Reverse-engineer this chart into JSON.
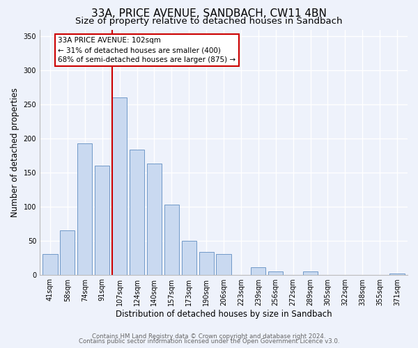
{
  "title": "33A, PRICE AVENUE, SANDBACH, CW11 4BN",
  "subtitle": "Size of property relative to detached houses in Sandbach",
  "xlabel": "Distribution of detached houses by size in Sandbach",
  "ylabel": "Number of detached properties",
  "categories": [
    "41sqm",
    "58sqm",
    "74sqm",
    "91sqm",
    "107sqm",
    "124sqm",
    "140sqm",
    "157sqm",
    "173sqm",
    "190sqm",
    "206sqm",
    "223sqm",
    "239sqm",
    "256sqm",
    "272sqm",
    "289sqm",
    "305sqm",
    "322sqm",
    "338sqm",
    "355sqm",
    "371sqm"
  ],
  "values": [
    30,
    65,
    193,
    160,
    260,
    184,
    163,
    103,
    50,
    33,
    30,
    0,
    11,
    5,
    0,
    5,
    0,
    0,
    0,
    0,
    2
  ],
  "bar_color": "#c9d9f0",
  "bar_edgecolor": "#7099c8",
  "redline_index": 4,
  "redline_color": "#cc0000",
  "annotation_text": "33A PRICE AVENUE: 102sqm\n← 31% of detached houses are smaller (400)\n68% of semi-detached houses are larger (875) →",
  "annotation_box_color": "#cc0000",
  "ylim": [
    0,
    360
  ],
  "yticks": [
    0,
    50,
    100,
    150,
    200,
    250,
    300,
    350
  ],
  "footer_line1": "Contains HM Land Registry data © Crown copyright and database right 2024.",
  "footer_line2": "Contains public sector information licensed under the Open Government Licence v3.0.",
  "bg_color": "#eef2fb",
  "plot_bg_color": "#eef2fb",
  "title_fontsize": 11,
  "subtitle_fontsize": 9.5,
  "axis_label_fontsize": 8.5,
  "tick_fontsize": 7,
  "annotation_fontsize": 7.5,
  "footer_fontsize": 6.2
}
